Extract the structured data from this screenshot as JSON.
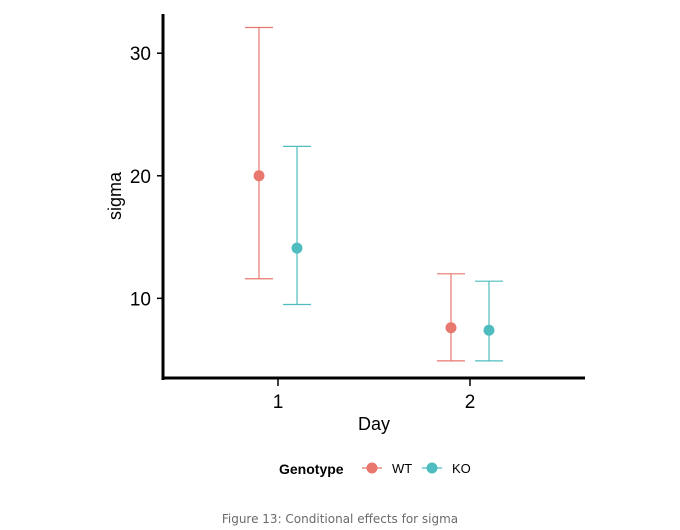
{
  "chart_data": {
    "type": "scatter",
    "title": "",
    "xlabel": "Day",
    "ylabel": "sigma",
    "categories": [
      "1",
      "2"
    ],
    "ylim": [
      3.5,
      33.2
    ],
    "yticks": [
      10,
      20,
      30
    ],
    "grid": false,
    "legend": {
      "title": "Genotype",
      "position": "bottom"
    },
    "series": [
      {
        "name": "WT",
        "color": "#e8776e",
        "points": [
          {
            "x": "1",
            "y": 20.0,
            "lower": 11.6,
            "upper": 32.1
          },
          {
            "x": "2",
            "y": 7.6,
            "lower": 4.9,
            "upper": 12.0
          }
        ]
      },
      {
        "name": "KO",
        "color": "#4fbdbf",
        "points": [
          {
            "x": "1",
            "y": 14.1,
            "lower": 9.5,
            "upper": 22.4
          },
          {
            "x": "2",
            "y": 7.4,
            "lower": 4.9,
            "upper": 11.4
          }
        ]
      }
    ]
  },
  "caption": "Figure 13: Conditional effects for sigma"
}
